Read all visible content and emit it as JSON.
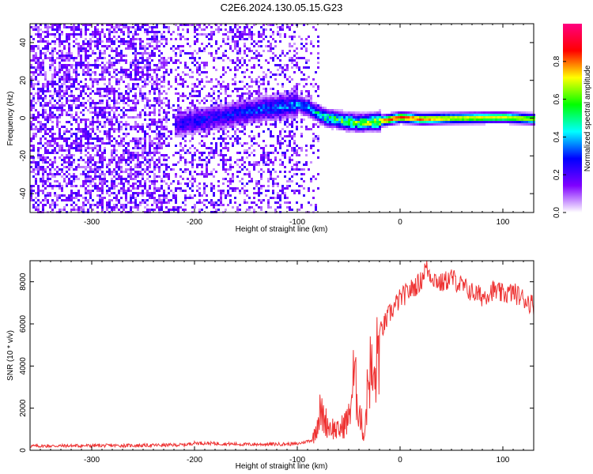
{
  "title": "C2E6.2024.130.05.15.G23",
  "chart_data": [
    {
      "type": "heatmap",
      "title": "C2E6.2024.130.05.15.G23",
      "xlabel": "Height of straight line (km)",
      "ylabel": "Frequency (Hz)",
      "xlim": [
        -360,
        130
      ],
      "ylim": [
        -50,
        50
      ],
      "xticks": [
        -300,
        -200,
        -100,
        0,
        100
      ],
      "yticks": [
        -40,
        -20,
        0,
        20,
        40
      ],
      "colorbar": {
        "label": "Normalized spectral amplitude",
        "range": [
          0.0,
          1.0
        ],
        "ticks": [
          "0.0",
          "0.2",
          "0.4",
          "0.6",
          "0.8"
        ],
        "colors": [
          "#ffffff",
          "#7f00ff",
          "#0000ff",
          "#00ffff",
          "#00ff00",
          "#ffff00",
          "#ff0000",
          "#ff0080"
        ]
      },
      "ridge": [
        {
          "x": -220,
          "y": -3,
          "amp": 0.25
        },
        {
          "x": -200,
          "y": -1,
          "amp": 0.3
        },
        {
          "x": -160,
          "y": 3,
          "amp": 0.3
        },
        {
          "x": -140,
          "y": 5,
          "amp": 0.35
        },
        {
          "x": -100,
          "y": 8,
          "amp": 0.4
        },
        {
          "x": -90,
          "y": 6,
          "amp": 0.45
        },
        {
          "x": -75,
          "y": 1,
          "amp": 0.55
        },
        {
          "x": -55,
          "y": -1,
          "amp": 0.65
        },
        {
          "x": -40,
          "y": -2,
          "amp": 0.7
        },
        {
          "x": -20,
          "y": -1,
          "amp": 0.85
        },
        {
          "x": 0,
          "y": 1,
          "amp": 0.9
        },
        {
          "x": 20,
          "y": 0,
          "amp": 0.85
        },
        {
          "x": 50,
          "y": 0.5,
          "amp": 0.75
        },
        {
          "x": 100,
          "y": 1,
          "amp": 0.75
        },
        {
          "x": 130,
          "y": 0,
          "amp": 0.7
        }
      ]
    },
    {
      "type": "line",
      "xlabel": "Height of straight line (km)",
      "ylabel": "SNR (10 * v/v)",
      "xlim": [
        -360,
        130
      ],
      "ylim": [
        0,
        9000
      ],
      "xticks": [
        -300,
        -200,
        -100,
        0,
        100
      ],
      "yticks": [
        0,
        2000,
        4000,
        6000,
        8000
      ],
      "color": "#ee3333",
      "series": [
        {
          "x": [
            -360,
            -300,
            -250,
            -210,
            -200,
            -150,
            -100,
            -85,
            -78,
            -70,
            -60,
            -50,
            -45,
            -40,
            -35,
            -30,
            -25,
            -20,
            -10,
            0,
            10,
            20,
            25,
            30,
            40,
            50,
            60,
            70,
            80,
            90,
            100,
            110,
            120,
            130
          ],
          "y": [
            200,
            220,
            230,
            260,
            350,
            280,
            300,
            500,
            1800,
            1200,
            900,
            1500,
            3500,
            2000,
            600,
            4000,
            3000,
            5500,
            6500,
            7200,
            7600,
            8000,
            8700,
            8300,
            7900,
            8200,
            7800,
            7500,
            7300,
            7600,
            7400,
            7500,
            7200,
            6900
          ]
        }
      ]
    }
  ]
}
